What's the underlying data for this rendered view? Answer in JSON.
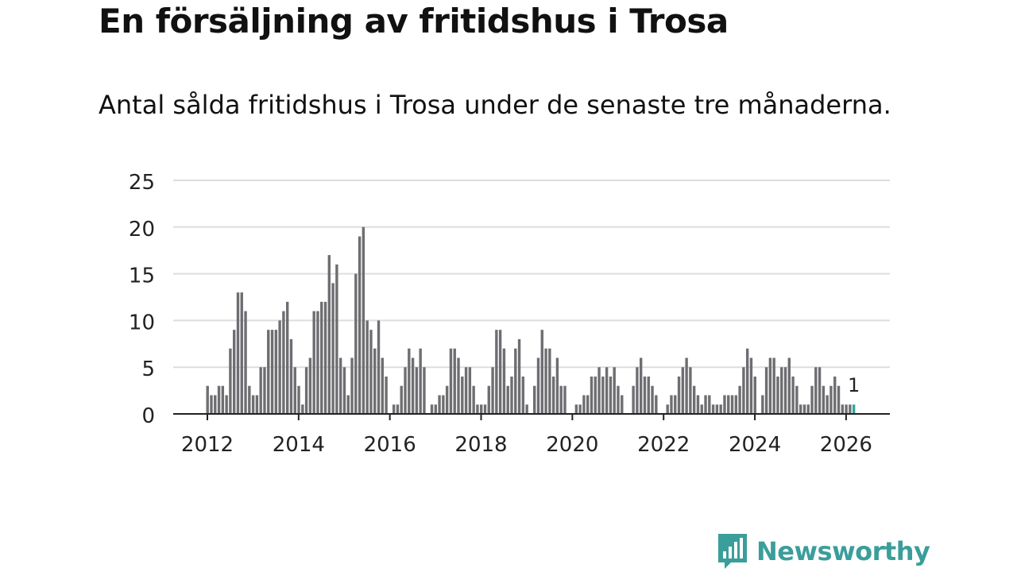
{
  "page": {
    "title": "En försäljning av fritidshus i Trosa",
    "subtitle": "Antal sålda fritidshus i Trosa under de senaste tre månaderna."
  },
  "brand": {
    "name": "Newsworthy",
    "color": "#3a9e9b",
    "icon": "newsworthy-bar-chart-icon"
  },
  "chart_data": {
    "type": "bar",
    "title": "En försäljning av fritidshus i Trosa",
    "subtitle": "Antal sålda fritidshus i Trosa under de senaste tre månaderna.",
    "x_start": "2012-01",
    "frequency": "monthly",
    "values": [
      3,
      2,
      2,
      3,
      3,
      2,
      7,
      9,
      13,
      13,
      11,
      3,
      2,
      2,
      5,
      5,
      9,
      9,
      9,
      10,
      11,
      12,
      8,
      5,
      3,
      1,
      5,
      6,
      11,
      11,
      12,
      12,
      17,
      14,
      16,
      6,
      5,
      2,
      6,
      15,
      19,
      20,
      10,
      9,
      7,
      10,
      6,
      4,
      0,
      1,
      1,
      3,
      5,
      7,
      6,
      5,
      7,
      5,
      0,
      1,
      1,
      2,
      2,
      3,
      7,
      7,
      6,
      4,
      5,
      5,
      3,
      1,
      1,
      1,
      3,
      5,
      9,
      9,
      7,
      3,
      4,
      7,
      8,
      4,
      1,
      0,
      3,
      6,
      9,
      7,
      7,
      4,
      6,
      3,
      3,
      0,
      0,
      1,
      1,
      2,
      2,
      4,
      4,
      5,
      4,
      5,
      4,
      5,
      3,
      2,
      0,
      0,
      3,
      5,
      6,
      4,
      4,
      3,
      2,
      0,
      0,
      1,
      2,
      2,
      4,
      5,
      6,
      5,
      3,
      2,
      1,
      2,
      2,
      1,
      1,
      1,
      2,
      2,
      2,
      2,
      3,
      5,
      7,
      6,
      4,
      0,
      2,
      5,
      6,
      6,
      4,
      5,
      5,
      6,
      4,
      3,
      1,
      1,
      1,
      3,
      5,
      5,
      3,
      2,
      3,
      4,
      3,
      1,
      1,
      1,
      1
    ],
    "highlight_last": true,
    "last_value_label": "1",
    "x_ticks": [
      "2012",
      "2014",
      "2016",
      "2018",
      "2020",
      "2022",
      "2024",
      "2026"
    ],
    "y_ticks": [
      0,
      5,
      10,
      15,
      20,
      25
    ],
    "ylim": [
      0,
      25
    ],
    "xlabel": "",
    "ylabel": "",
    "grid": true,
    "colors": {
      "bar": "#6e6e72",
      "highlight": "#2fa49f",
      "grid": "#dddddd",
      "axis": "#222222",
      "text": "#222222"
    }
  }
}
